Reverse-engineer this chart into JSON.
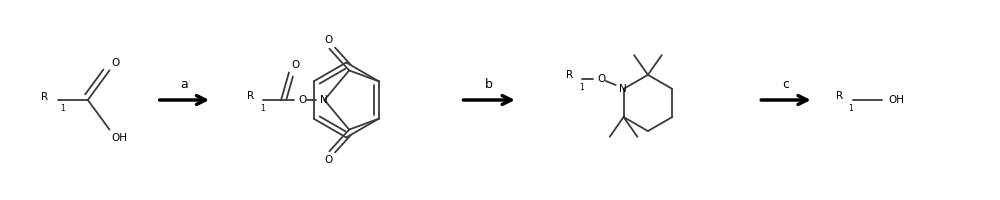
{
  "bg_color": "#ffffff",
  "line_color": "#3a3a3a",
  "text_color": "#000000",
  "figsize": [
    10,
    2
  ],
  "dpi": 100,
  "label_a": "a",
  "label_b": "b",
  "label_c": "c",
  "lw": 1.3,
  "arrow_lw": 2.5
}
